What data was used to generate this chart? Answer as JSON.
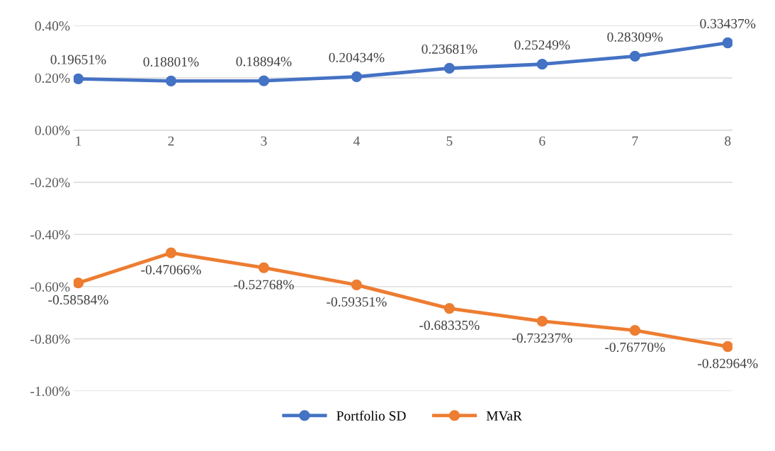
{
  "chart_data": {
    "type": "line",
    "categories": [
      "1",
      "2",
      "3",
      "4",
      "5",
      "6",
      "7",
      "8"
    ],
    "series": [
      {
        "name": "Portfolio SD",
        "color": "#4472c4",
        "values": [
          0.19651,
          0.18801,
          0.18894,
          0.20434,
          0.23681,
          0.25249,
          0.28309,
          0.33437
        ],
        "value_labels": [
          "0.19651%",
          "0.18801%",
          "0.18894%",
          "0.20434%",
          "0.23681%",
          "0.25249%",
          "0.28309%",
          "0.33437%"
        ]
      },
      {
        "name": "MVaR",
        "color": "#ed7d31",
        "values": [
          -0.58584,
          -0.47066,
          -0.52768,
          -0.59351,
          -0.68335,
          -0.73237,
          -0.7677,
          -0.82964
        ],
        "value_labels": [
          "-0.58584%",
          "-0.47066%",
          "-0.52768%",
          "-0.59351%",
          "-0.68335%",
          "-0.73237%",
          "-0.76770%",
          "-0.82964%"
        ]
      }
    ],
    "ylim": [
      -1.0,
      0.4
    ],
    "yticks": [
      {
        "value": 0.4,
        "label": "0.40%"
      },
      {
        "value": 0.2,
        "label": "0.20%"
      },
      {
        "value": 0.0,
        "label": "0.00%"
      },
      {
        "value": -0.2,
        "label": "-0.20%"
      },
      {
        "value": -0.4,
        "label": "-0.40%"
      },
      {
        "value": -0.6,
        "label": "-0.60%"
      },
      {
        "value": -0.8,
        "label": "-0.80%"
      },
      {
        "value": -1.0,
        "label": "-1.00%"
      }
    ],
    "grid": "y",
    "legend": "bottom",
    "marker": "circle",
    "line_style": "solid"
  }
}
